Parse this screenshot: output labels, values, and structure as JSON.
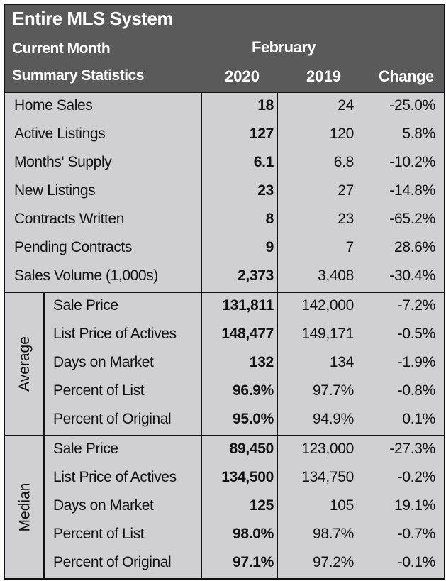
{
  "header": {
    "title": "Entire MLS System",
    "current_month": "Current Month",
    "month": "February",
    "summary_statistics": "Summary Statistics",
    "year_current": "2020",
    "year_prior": "2019",
    "change": "Change"
  },
  "summary_rows": [
    {
      "label": "Home Sales",
      "v2020": "18",
      "v2019": "24",
      "change": "-25.0%"
    },
    {
      "label": "Active Listings",
      "v2020": "127",
      "v2019": "120",
      "change": "5.8%"
    },
    {
      "label": "Months' Supply",
      "v2020": "6.1",
      "v2019": "6.8",
      "change": "-10.2%"
    },
    {
      "label": "New Listings",
      "v2020": "23",
      "v2019": "27",
      "change": "-14.8%"
    },
    {
      "label": "Contracts Written",
      "v2020": "8",
      "v2019": "23",
      "change": "-65.2%"
    },
    {
      "label": "Pending Contracts",
      "v2020": "9",
      "v2019": "7",
      "change": "28.6%"
    },
    {
      "label": "Sales Volume (1,000s)",
      "v2020": "2,373",
      "v2019": "3,408",
      "change": "-30.4%"
    }
  ],
  "average": {
    "group_label": "Average",
    "rows": [
      {
        "label": "Sale Price",
        "v2020": "131,811",
        "v2019": "142,000",
        "change": "-7.2%"
      },
      {
        "label": "List Price of Actives",
        "v2020": "148,477",
        "v2019": "149,171",
        "change": "-0.5%"
      },
      {
        "label": "Days on Market",
        "v2020": "132",
        "v2019": "134",
        "change": "-1.9%"
      },
      {
        "label": "Percent of List",
        "v2020": "96.9%",
        "v2019": "97.7%",
        "change": "-0.8%"
      },
      {
        "label": "Percent of Original",
        "v2020": "95.0%",
        "v2019": "94.9%",
        "change": "0.1%"
      }
    ]
  },
  "median": {
    "group_label": "Median",
    "rows": [
      {
        "label": "Sale Price",
        "v2020": "89,450",
        "v2019": "123,000",
        "change": "-27.3%"
      },
      {
        "label": "List Price of Actives",
        "v2020": "134,500",
        "v2019": "134,750",
        "change": "-0.2%"
      },
      {
        "label": "Days on Market",
        "v2020": "125",
        "v2019": "105",
        "change": "19.1%"
      },
      {
        "label": "Percent of List",
        "v2020": "98.0%",
        "v2019": "98.7%",
        "change": "-0.7%"
      },
      {
        "label": "Percent of Original",
        "v2020": "97.1%",
        "v2019": "97.2%",
        "change": "-0.1%"
      }
    ]
  },
  "colors": {
    "header_bg": "#5a5a5a",
    "body_bg": "#d0d0d2",
    "border": "#111111"
  }
}
